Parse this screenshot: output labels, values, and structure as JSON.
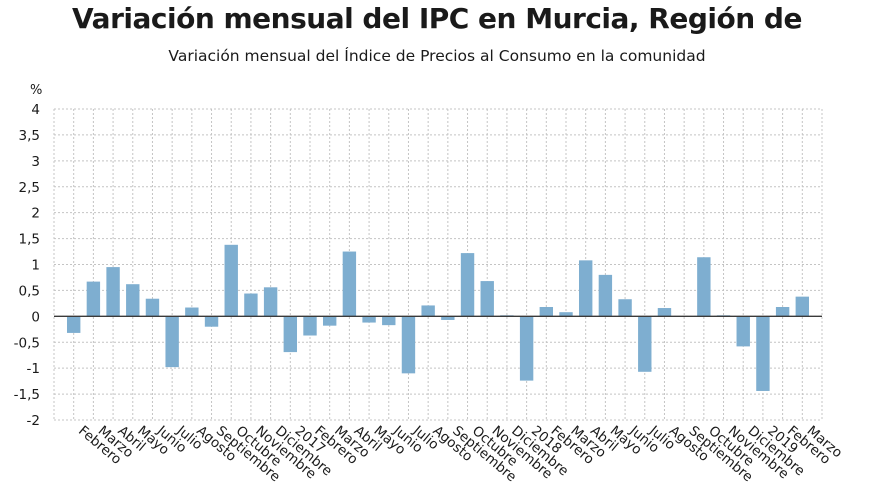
{
  "chart_data": {
    "type": "bar",
    "title": "Variación mensual del IPC en Murcia, Región de",
    "subtitle": "Variación mensual del Índice de Precios al Consumo en la comunidad",
    "ylabel": "%",
    "ylim": [
      -2,
      4
    ],
    "yticks": [
      "-2",
      "-1,5",
      "-1",
      "-0,5",
      "0",
      "0,5",
      "1",
      "1,5",
      "2",
      "2,5",
      "3",
      "3,5",
      "4"
    ],
    "grid": true,
    "bar_color": "#7eaed0",
    "categories": [
      "Febrero",
      "Marzo",
      "Abril",
      "Mayo",
      "Junio",
      "Julio",
      "Agosto",
      "Septiembre",
      "Octubre",
      "Noviembre",
      "Diciembre",
      "2017",
      "Febrero",
      "Marzo",
      "Abril",
      "Mayo",
      "Junio",
      "Julio",
      "Agosto",
      "Septiembre",
      "Octubre",
      "Noviembre",
      "Diciembre",
      "2018",
      "Febrero",
      "Marzo",
      "Abril",
      "Mayo",
      "Junio",
      "Julio",
      "Agosto",
      "Septiembre",
      "Octubre",
      "Noviembre",
      "Diciembre",
      "2019",
      "Febrero",
      "Marzo"
    ],
    "values": [
      -0.32,
      0.67,
      0.95,
      0.62,
      0.34,
      -0.98,
      0.17,
      -0.2,
      1.38,
      0.44,
      0.56,
      -0.69,
      -0.37,
      -0.18,
      1.25,
      -0.12,
      -0.17,
      -1.1,
      0.21,
      -0.07,
      1.22,
      0.68,
      0.02,
      -1.24,
      0.18,
      0.08,
      1.08,
      0.8,
      0.33,
      -1.07,
      0.16,
      0.0,
      1.14,
      0.02,
      -0.58,
      -1.44,
      0.18,
      0.38
    ]
  }
}
